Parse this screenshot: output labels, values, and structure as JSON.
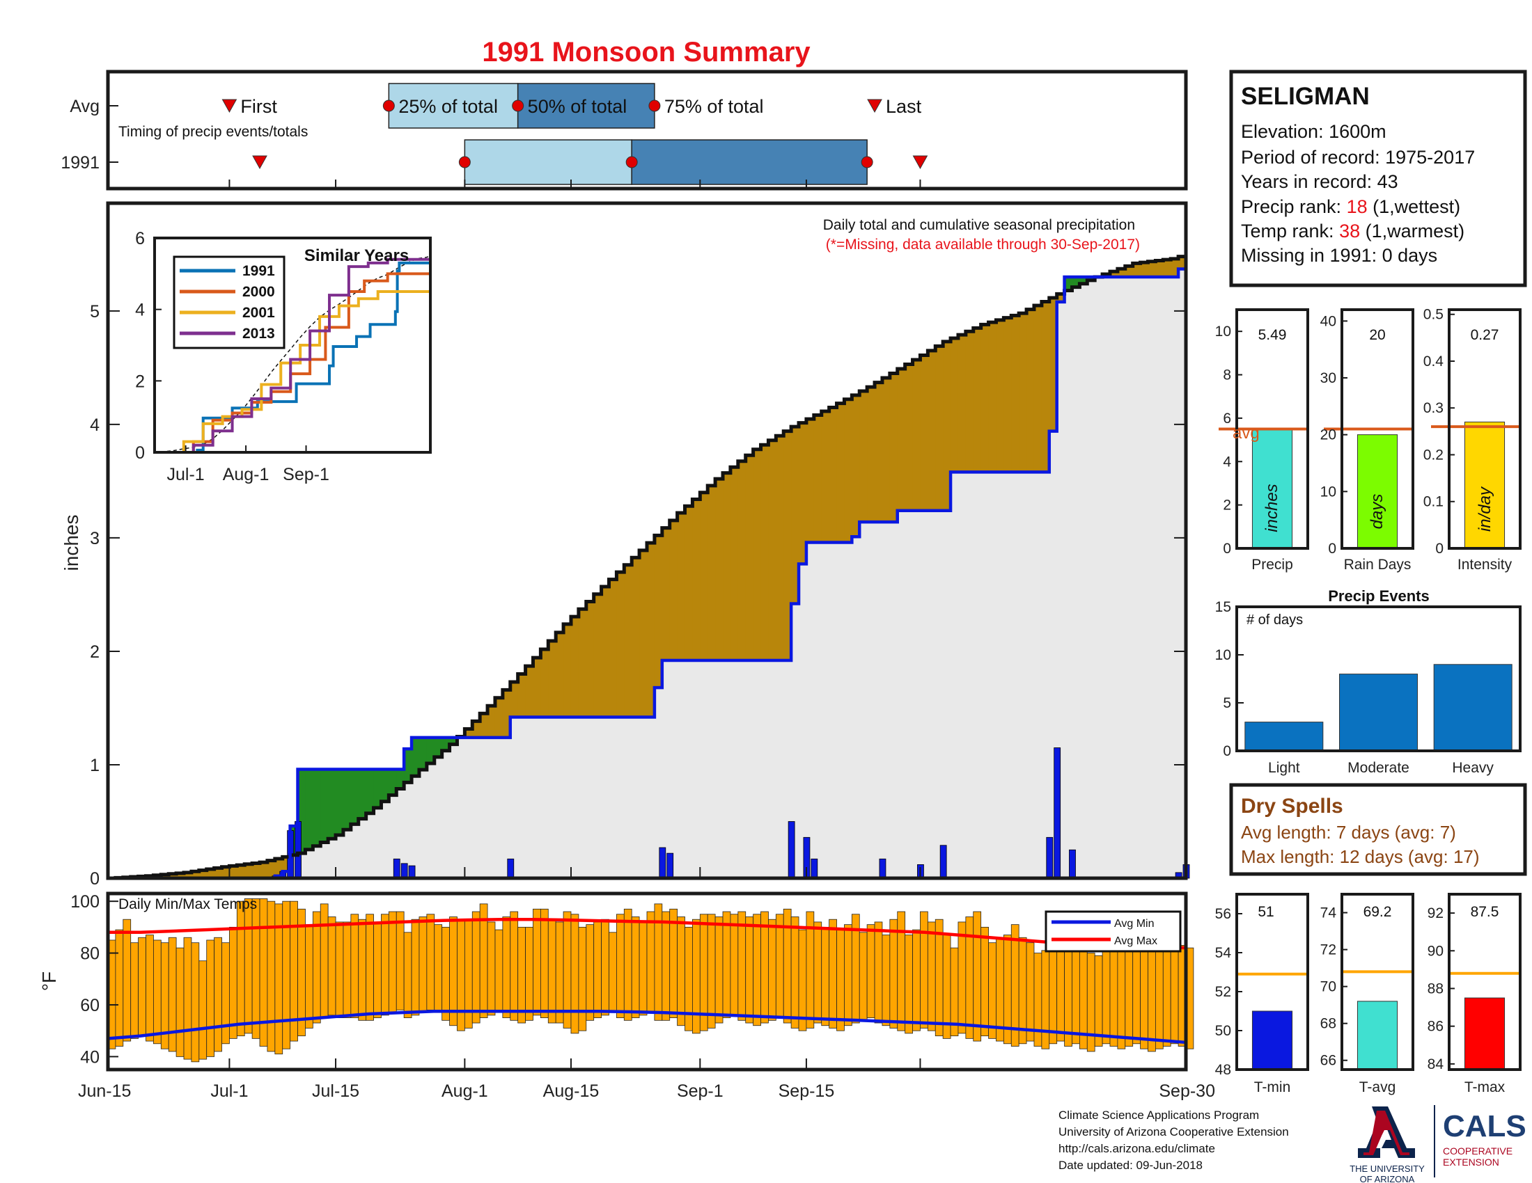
{
  "title": "1991 Monsoon Summary",
  "timing": {
    "label": "Timing of precip events/totals",
    "rows": [
      "Avg",
      "1991"
    ],
    "first_label": "First",
    "last_label": "Last",
    "q25_label": "25% of total",
    "q50_label": "50% of total",
    "q75_label": "75% of total",
    "avg": {
      "first": "2017-07-01",
      "q25": "2017-07-22",
      "q50": "2017-08-08",
      "q75": "2017-08-26",
      "last": "2017-09-24"
    },
    "year": {
      "first": "2017-07-05",
      "q25": "2017-08-01",
      "q50": "2017-08-23",
      "q75": "2017-09-23",
      "last": "2017-09-30"
    }
  },
  "station": {
    "name": "SELIGMAN",
    "elevation": "Elevation: 1600m",
    "period": "Period of record: 1975-2017",
    "years": "Years in record: 43",
    "precip_rank_label": "Precip rank: ",
    "precip_rank": "18",
    "precip_rank_note": " (1,wettest)",
    "temp_rank_label": "Temp rank: ",
    "temp_rank": "38",
    "temp_rank_note": " (1,warmest)",
    "missing": "Missing in 1991: 0 days"
  },
  "main_chart": {
    "note": "Daily total and cumulative seasonal precipitation",
    "missing_note": "(*=Missing, data available through 30-Sep-2017)",
    "ylabel": "inches",
    "x_ticks": [
      "Jun-15",
      "Jul-1",
      "Jul-15",
      "Aug-1",
      "Aug-15",
      "Sep-1",
      "Sep-15",
      "Sep-30"
    ],
    "y_ticks": [
      "0",
      "1",
      "2",
      "3",
      "4",
      "5"
    ]
  },
  "inset": {
    "title": "Similar Years",
    "legend": [
      "1991",
      "2000",
      "2001",
      "2013"
    ],
    "x_ticks": [
      "Jul-1",
      "Aug-1",
      "Sep-1"
    ],
    "y_ticks": [
      "0",
      "2",
      "4",
      "6"
    ]
  },
  "temps": {
    "label": "Daily Min/Max Temps",
    "ylabel": "°F",
    "y_ticks": [
      "40",
      "60",
      "80",
      "100"
    ],
    "legend_min": "Avg Min",
    "legend_max": "Avg Max"
  },
  "stats": {
    "precip": {
      "value": "5.49",
      "unit": "inches",
      "label": "Precip",
      "avg_label": "avg",
      "y_ticks": [
        "0",
        "2",
        "4",
        "6",
        "8",
        "10"
      ]
    },
    "rain_days": {
      "value": "20",
      "unit": "days",
      "label": "Rain Days",
      "y_ticks": [
        "0",
        "10",
        "20",
        "30",
        "40"
      ]
    },
    "intensity": {
      "value": "0.27",
      "unit": "in/day",
      "label": "Intensity",
      "y_ticks": [
        "0",
        "0.1",
        "0.2",
        "0.3",
        "0.4",
        "0.5"
      ]
    }
  },
  "events": {
    "title": "Precip Events",
    "ylabel": "# of days",
    "y_ticks": [
      "0",
      "5",
      "10",
      "15"
    ]
  },
  "dry_spells": {
    "title": "Dry Spells",
    "avg": "Avg length: 7 days (avg: 7)",
    "max": "Max length: 12 days (avg: 17)"
  },
  "temp_stats": {
    "tmin": {
      "value": "51",
      "label": "T-min",
      "y_ticks": [
        "48",
        "50",
        "52",
        "54",
        "56"
      ]
    },
    "tavg": {
      "value": "69.2",
      "label": "T-avg",
      "y_ticks": [
        "66",
        "68",
        "70",
        "72",
        "74"
      ]
    },
    "tmax": {
      "value": "87.5",
      "label": "T-max",
      "y_ticks": [
        "84",
        "86",
        "88",
        "90",
        "92"
      ]
    }
  },
  "footer": {
    "line1": "Climate Science Applications Program",
    "line2": "University of Arizona Cooperative Extension",
    "line3": "http://cals.arizona.edu/climate",
    "line4": " Date updated: 09-Jun-2018",
    "ua_line1": "THE UNIVERSITY",
    "ua_line2": "OF ARIZONA",
    "cals": "CALS",
    "cals_line1": "COOPERATIVE",
    "cals_line2": "EXTENSION"
  },
  "chart_data": [
    {
      "type": "area",
      "name": "cumulative_precip",
      "start_date": "2017-06-15",
      "ylim": [
        0,
        6
      ],
      "avg_cumulative": [
        [
          0,
          0
        ],
        [
          5,
          0.02
        ],
        [
          10,
          0.05
        ],
        [
          15,
          0.1
        ],
        [
          20,
          0.14
        ],
        [
          25,
          0.22
        ],
        [
          30,
          0.38
        ],
        [
          35,
          0.62
        ],
        [
          40,
          0.9
        ],
        [
          45,
          1.18
        ],
        [
          50,
          1.52
        ],
        [
          55,
          1.87
        ],
        [
          60,
          2.24
        ],
        [
          65,
          2.57
        ],
        [
          70,
          2.89
        ],
        [
          75,
          3.22
        ],
        [
          80,
          3.52
        ],
        [
          85,
          3.78
        ],
        [
          90,
          3.98
        ],
        [
          95,
          4.15
        ],
        [
          100,
          4.33
        ],
        [
          105,
          4.53
        ],
        [
          110,
          4.73
        ],
        [
          115,
          4.88
        ],
        [
          120,
          4.98
        ],
        [
          125,
          5.15
        ],
        [
          130,
          5.3
        ],
        [
          135,
          5.42
        ],
        [
          140,
          5.46
        ],
        [
          142,
          5.5
        ]
      ],
      "year_cumulative": [
        [
          0,
          0
        ],
        [
          21,
          0
        ],
        [
          22,
          0.02
        ],
        [
          23,
          0.06
        ],
        [
          24,
          0.46
        ],
        [
          25,
          0.96
        ],
        [
          38,
          0.96
        ],
        [
          39,
          1.14
        ],
        [
          40,
          1.24
        ],
        [
          52,
          1.24
        ],
        [
          53,
          1.42
        ],
        [
          71,
          1.42
        ],
        [
          72,
          1.68
        ],
        [
          73,
          1.92
        ],
        [
          89,
          1.92
        ],
        [
          90,
          2.42
        ],
        [
          91,
          2.77
        ],
        [
          92,
          2.96
        ],
        [
          97,
          2.96
        ],
        [
          98,
          3.01
        ],
        [
          99,
          3.14
        ],
        [
          103,
          3.14
        ],
        [
          104,
          3.24
        ],
        [
          110,
          3.24
        ],
        [
          111,
          3.58
        ],
        [
          123,
          3.58
        ],
        [
          124,
          3.94
        ],
        [
          125,
          5.08
        ],
        [
          126,
          5.3
        ],
        [
          140,
          5.3
        ],
        [
          141,
          5.37
        ],
        [
          142,
          5.49
        ]
      ],
      "daily_precip": [
        [
          22,
          0.02
        ],
        [
          23,
          0.06
        ],
        [
          24,
          0.42
        ],
        [
          25,
          0.5
        ],
        [
          38,
          0.17
        ],
        [
          39,
          0.13
        ],
        [
          40,
          0.11
        ],
        [
          53,
          0.17
        ],
        [
          73,
          0.27
        ],
        [
          74,
          0.22
        ],
        [
          90,
          0.5
        ],
        [
          92,
          0.36
        ],
        [
          93,
          0.17
        ],
        [
          102,
          0.17
        ],
        [
          107,
          0.12
        ],
        [
          110,
          0.29
        ],
        [
          124,
          0.36
        ],
        [
          125,
          1.15
        ],
        [
          127,
          0.25
        ],
        [
          141,
          0.05
        ],
        [
          142,
          0.12
        ]
      ]
    },
    {
      "type": "line",
      "name": "similar_years",
      "start_date": "2017-06-15",
      "ylim": [
        0,
        6
      ],
      "series": [
        {
          "name": "1991",
          "values": [
            [
              0,
              0
            ],
            [
              22,
              0.06
            ],
            [
              25,
              0.96
            ],
            [
              40,
              1.24
            ],
            [
              53,
              1.42
            ],
            [
              73,
              1.92
            ],
            [
              90,
              2.42
            ],
            [
              92,
              2.96
            ],
            [
              104,
              3.24
            ],
            [
              111,
              3.58
            ],
            [
              124,
              3.94
            ],
            [
              125,
              5.08
            ],
            [
              126,
              5.3
            ],
            [
              142,
              5.49
            ]
          ]
        },
        {
          "name": "2000",
          "values": [
            [
              0,
              0
            ],
            [
              20,
              0.3
            ],
            [
              30,
              0.9
            ],
            [
              40,
              1.1
            ],
            [
              50,
              1.4
            ],
            [
              60,
              1.7
            ],
            [
              70,
              2.2
            ],
            [
              80,
              2.6
            ],
            [
              88,
              3.5
            ],
            [
              100,
              4.5
            ],
            [
              108,
              4.8
            ],
            [
              120,
              5.0
            ],
            [
              142,
              5.1
            ]
          ]
        },
        {
          "name": "2001",
          "values": [
            [
              0,
              0
            ],
            [
              15,
              0.3
            ],
            [
              25,
              0.8
            ],
            [
              35,
              1.0
            ],
            [
              45,
              1.2
            ],
            [
              55,
              1.9
            ],
            [
              65,
              2.5
            ],
            [
              75,
              3.0
            ],
            [
              85,
              3.8
            ],
            [
              95,
              4.1
            ],
            [
              105,
              4.3
            ],
            [
              115,
              4.5
            ],
            [
              142,
              4.5
            ]
          ]
        },
        {
          "name": "2013",
          "values": [
            [
              0,
              0
            ],
            [
              20,
              0.2
            ],
            [
              30,
              0.6
            ],
            [
              40,
              1.0
            ],
            [
              50,
              1.5
            ],
            [
              60,
              1.8
            ],
            [
              70,
              2.6
            ],
            [
              80,
              3.4
            ],
            [
              90,
              4.4
            ],
            [
              100,
              5.2
            ],
            [
              110,
              5.3
            ],
            [
              120,
              5.4
            ],
            [
              142,
              5.5
            ]
          ]
        }
      ]
    },
    {
      "type": "bar",
      "name": "daily_temps",
      "start_date": "2017-06-15",
      "ylim": [
        35,
        103
      ],
      "tmax": [
        85,
        89,
        93,
        84,
        86,
        87,
        85,
        84,
        86,
        82,
        86,
        84,
        77,
        85,
        86,
        84,
        90,
        100,
        101,
        101,
        101,
        100,
        99,
        100,
        100,
        97,
        91,
        96,
        99,
        94,
        92,
        92,
        95,
        93,
        95,
        92,
        95,
        96,
        96,
        88,
        93,
        94,
        95,
        91,
        90,
        94,
        93,
        93,
        96,
        99,
        92,
        89,
        94,
        96,
        90,
        90,
        97,
        97,
        93,
        92,
        96,
        95,
        90,
        91,
        92,
        93,
        88,
        95,
        97,
        94,
        92,
        96,
        99,
        96,
        97,
        94,
        90,
        93,
        95,
        95,
        94,
        96,
        95,
        96,
        94,
        95,
        96,
        93,
        95,
        97,
        94,
        89,
        96,
        92,
        90,
        93,
        89,
        91,
        95,
        88,
        91,
        92,
        87,
        93,
        96,
        87,
        89,
        96,
        92,
        93,
        87,
        82,
        92,
        94,
        96,
        90,
        84,
        86,
        87,
        91,
        86,
        84,
        80,
        81,
        85,
        88,
        82,
        88,
        84,
        80,
        79,
        83,
        82,
        85,
        86,
        84,
        83,
        84,
        81,
        85,
        84,
        83,
        82
      ],
      "tmin": [
        43,
        44,
        46,
        47,
        48,
        46,
        45,
        43,
        42,
        40,
        39,
        38,
        39,
        40,
        42,
        45,
        47,
        48,
        49,
        47,
        44,
        42,
        41,
        43,
        46,
        48,
        51,
        53,
        55,
        56,
        55,
        55,
        55,
        54,
        54,
        55,
        56,
        57,
        58,
        55,
        56,
        57,
        58,
        57,
        54,
        52,
        50,
        51,
        53,
        55,
        56,
        57,
        55,
        54,
        53,
        54,
        56,
        55,
        53,
        53,
        51,
        49,
        50,
        54,
        55,
        56,
        57,
        55,
        54,
        55,
        56,
        57,
        54,
        54,
        55,
        52,
        50,
        49,
        50,
        51,
        53,
        55,
        56,
        54,
        53,
        52,
        53,
        54,
        55,
        53,
        51,
        50,
        51,
        53,
        52,
        51,
        50,
        52,
        53,
        54,
        55,
        53,
        52,
        51,
        50,
        49,
        50,
        51,
        50,
        48,
        47,
        48,
        49,
        47,
        46,
        48,
        47,
        46,
        45,
        44,
        45,
        46,
        44,
        43,
        45,
        46,
        44,
        45,
        43,
        42,
        44,
        45,
        44,
        43,
        44,
        45,
        43,
        42,
        43,
        44,
        45,
        44,
        43
      ],
      "avg_max": [
        88,
        88,
        88.5,
        89,
        89.5,
        90,
        90.5,
        91,
        91.5,
        92,
        92.5,
        92.8,
        93,
        93,
        92.8,
        92.5,
        92.2,
        92,
        91.5,
        91,
        90.5,
        90,
        89.5,
        89,
        88.5,
        88,
        87,
        86,
        85,
        84,
        83.5,
        83,
        82.5,
        82
      ],
      "avg_min": [
        47,
        48,
        49.5,
        51,
        52.5,
        53.5,
        54.5,
        55.5,
        56.5,
        57,
        57.5,
        57.5,
        57.5,
        57.5,
        57.5,
        57.5,
        57.3,
        57,
        56.5,
        56,
        55.5,
        55,
        54.5,
        54,
        53.5,
        53,
        52.5,
        51.5,
        50.5,
        49.5,
        48.5,
        47.5,
        46.5,
        45.5
      ]
    },
    {
      "type": "bar",
      "name": "precip_total",
      "values": [
        5.49
      ],
      "avg": 5.5,
      "ylim": [
        0,
        11
      ]
    },
    {
      "type": "bar",
      "name": "rain_days",
      "values": [
        20
      ],
      "avg": 21,
      "ylim": [
        0,
        42
      ]
    },
    {
      "type": "bar",
      "name": "intensity",
      "values": [
        0.27
      ],
      "avg": 0.26,
      "ylim": [
        0,
        0.51
      ]
    },
    {
      "type": "bar",
      "name": "precip_events",
      "categories": [
        "Light",
        "Moderate",
        "Heavy"
      ],
      "values": [
        3,
        8,
        9
      ],
      "ylim": [
        0,
        15
      ]
    },
    {
      "type": "bar",
      "name": "tmin_stat",
      "values": [
        51
      ],
      "avg": 52.9,
      "ylim": [
        48,
        57
      ]
    },
    {
      "type": "bar",
      "name": "tavg_stat",
      "values": [
        69.2
      ],
      "avg": 70.8,
      "ylim": [
        65.5,
        75
      ]
    },
    {
      "type": "bar",
      "name": "tmax_stat",
      "values": [
        87.5
      ],
      "avg": 88.8,
      "ylim": [
        83.7,
        93
      ]
    }
  ]
}
